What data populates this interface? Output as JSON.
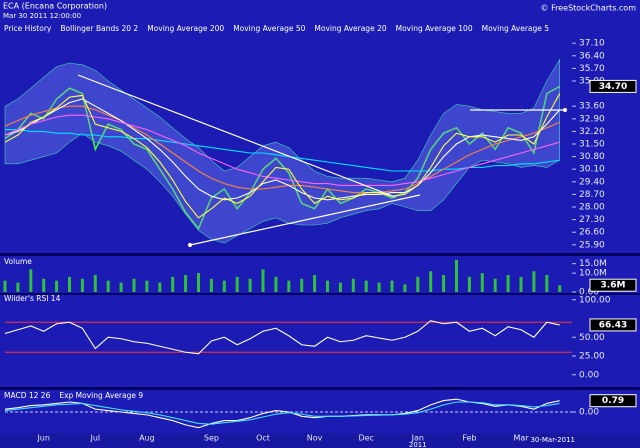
{
  "copyright": "© FreeStockCharts.com",
  "chart_data": [
    {
      "type": "line",
      "title": "ECA (Encana Corporation)",
      "subtitle": "Mar 30 2011 12:00:00",
      "categories": [
        null,
        null,
        null,
        "Jun",
        null,
        null,
        null,
        "Jul",
        null,
        null,
        null,
        "Aug",
        null,
        null,
        null,
        null,
        "Sep",
        null,
        null,
        null,
        "Oct",
        null,
        null,
        null,
        "Nov",
        null,
        null,
        null,
        "Dec",
        null,
        null,
        null,
        "Jan",
        null,
        null,
        null,
        "Feb",
        null,
        null,
        null,
        "Mar",
        null,
        null,
        null
      ],
      "x_sublabel": "2011",
      "x_end_label": "30-Mar-2011",
      "ylim": [
        25.5,
        37.5
      ],
      "yticks": [
        {
          "value": 25.9,
          "label": "25.90"
        },
        {
          "value": 26.6,
          "label": "26.60"
        },
        {
          "value": 27.3,
          "label": "27.30"
        },
        {
          "value": 28,
          "label": "28.00"
        },
        {
          "value": 28.7,
          "label": "28.70"
        },
        {
          "value": 29.4,
          "label": "29.40"
        },
        {
          "value": 30.1,
          "label": "30.10"
        },
        {
          "value": 30.8,
          "label": "30.80"
        },
        {
          "value": 31.5,
          "label": "31.50"
        },
        {
          "value": 32.2,
          "label": "32.20"
        },
        {
          "value": 32.9,
          "label": "32.90"
        },
        {
          "value": 33.6,
          "label": "33.60"
        },
        {
          "value": 35,
          "label": "35.00"
        },
        {
          "value": 35.7,
          "label": "35.70"
        },
        {
          "value": 36.4,
          "label": "36.40"
        },
        {
          "value": 37.1,
          "label": "37.10"
        }
      ],
      "last_value_label": "34.70",
      "series": [
        {
          "name": "Price History",
          "color": "#40f040",
          "values": [
            31.8,
            32.3,
            33.2,
            32.9,
            34.0,
            34.6,
            34.3,
            31.2,
            32.6,
            32.3,
            31.5,
            31.2,
            30.1,
            29.0,
            27.7,
            26.8,
            28.5,
            29.0,
            27.9,
            28.8,
            30.1,
            30.7,
            29.9,
            28.2,
            27.9,
            29.0,
            28.2,
            28.5,
            29.0,
            28.8,
            28.5,
            28.8,
            29.6,
            31.2,
            32.1,
            32.4,
            31.5,
            32.1,
            31.2,
            32.4,
            32.1,
            31.0,
            34.3,
            34.7
          ]
        },
        {
          "name": "Bollinger Bands 20 2",
          "color": "#40d0b0",
          "upper": [
            33.6,
            34.0,
            34.6,
            35.2,
            35.8,
            36.0,
            35.9,
            35.6,
            35.0,
            34.5,
            34.0,
            33.5,
            33.0,
            32.4,
            31.8,
            31.3,
            30.6,
            30.0,
            30.2,
            30.8,
            31.4,
            31.6,
            31.3,
            30.6,
            30.0,
            29.7,
            29.6,
            29.6,
            29.6,
            29.5,
            29.4,
            29.6,
            30.6,
            32.0,
            33.2,
            33.7,
            33.6,
            33.4,
            33.3,
            33.2,
            33.2,
            33.5,
            35.0,
            36.2
          ],
          "lower": [
            30.4,
            30.4,
            30.6,
            30.8,
            31.0,
            31.6,
            32.1,
            31.6,
            31.4,
            31.1,
            30.6,
            30.1,
            29.4,
            28.6,
            27.6,
            26.7,
            26.2,
            26.0,
            26.4,
            26.8,
            27.2,
            27.4,
            27.1,
            27.0,
            27.0,
            27.1,
            27.4,
            27.6,
            27.8,
            27.9,
            28.2,
            28.0,
            27.8,
            27.8,
            28.4,
            29.3,
            30.2,
            30.6,
            30.5,
            30.4,
            30.2,
            30.3,
            30.2,
            30.6
          ]
        },
        {
          "name": "Moving Average 200",
          "color": "#00e0ff",
          "values": [
            32.3,
            32.3,
            32.2,
            32.2,
            32.1,
            32.1,
            32.0,
            32.0,
            31.9,
            31.9,
            31.8,
            31.8,
            31.7,
            31.6,
            31.5,
            31.4,
            31.3,
            31.2,
            31.1,
            31.0,
            31.0,
            30.9,
            30.8,
            30.7,
            30.6,
            30.5,
            30.4,
            30.3,
            30.2,
            30.1,
            30.0,
            30.0,
            30.0,
            30.0,
            30.1,
            30.1,
            30.2,
            30.2,
            30.3,
            30.3,
            30.4,
            30.4,
            30.5,
            30.6
          ]
        },
        {
          "name": "Moving Average 50",
          "color": "#ff8040",
          "values": [
            32.5,
            32.8,
            33.1,
            33.3,
            33.5,
            33.6,
            33.6,
            33.4,
            33.1,
            32.8,
            32.4,
            32.0,
            31.5,
            31.0,
            30.5,
            30.0,
            29.6,
            29.3,
            29.1,
            29.0,
            29.0,
            29.1,
            29.2,
            29.2,
            29.1,
            29.0,
            28.9,
            28.8,
            28.8,
            28.8,
            28.9,
            29.0,
            29.3,
            29.7,
            30.1,
            30.5,
            30.9,
            31.2,
            31.5,
            31.7,
            31.9,
            32.1,
            32.4,
            32.7
          ]
        },
        {
          "name": "Moving Average 20",
          "color": "#ffffff",
          "values": [
            32.0,
            32.2,
            32.6,
            33.0,
            33.4,
            33.8,
            34.0,
            33.6,
            33.2,
            32.8,
            32.3,
            31.8,
            31.2,
            30.5,
            29.7,
            29.0,
            28.6,
            28.4,
            28.5,
            28.8,
            29.3,
            29.5,
            29.2,
            28.8,
            28.5,
            28.4,
            28.5,
            28.6,
            28.7,
            28.7,
            28.8,
            28.8,
            29.2,
            29.9,
            30.8,
            31.5,
            31.9,
            32.0,
            31.9,
            31.8,
            31.7,
            31.9,
            32.6,
            33.4
          ]
        },
        {
          "name": "Moving Average 100",
          "color": "#ff60ff",
          "values": [
            32.0,
            32.3,
            32.6,
            32.8,
            33.0,
            33.1,
            33.1,
            33.0,
            32.9,
            32.7,
            32.5,
            32.3,
            32.0,
            31.7,
            31.4,
            31.0,
            30.7,
            30.4,
            30.1,
            29.9,
            29.7,
            29.6,
            29.5,
            29.4,
            29.3,
            29.3,
            29.2,
            29.2,
            29.2,
            29.2,
            29.2,
            29.3,
            29.4,
            29.6,
            29.8,
            30.0,
            30.2,
            30.4,
            30.6,
            30.8,
            31.0,
            31.2,
            31.4,
            31.6
          ]
        },
        {
          "name": "Moving Average 5",
          "color": "#ffff40",
          "values": [
            31.6,
            32.0,
            32.7,
            33.0,
            33.5,
            34.1,
            34.2,
            32.6,
            32.4,
            32.2,
            31.8,
            31.3,
            30.5,
            29.5,
            28.3,
            27.4,
            27.9,
            28.5,
            28.2,
            28.6,
            29.4,
            30.2,
            30.1,
            29.0,
            28.2,
            28.6,
            28.4,
            28.5,
            28.8,
            28.8,
            28.6,
            28.7,
            29.2,
            30.2,
            31.4,
            32.1,
            31.9,
            31.9,
            31.6,
            32.0,
            32.0,
            31.5,
            33.0,
            34.3
          ]
        }
      ]
    },
    {
      "type": "bar",
      "ylim": [
        0,
        18000000
      ],
      "yticks": [
        {
          "value": 0,
          "label": "0.00"
        },
        {
          "value": 10000000,
          "label": "10.0M"
        },
        {
          "value": 15000000,
          "label": "15.0M"
        }
      ],
      "last_value_label": "3.6M",
      "series": [
        {
          "name": "Volume",
          "color": "#30c040",
          "legend_color": "#ff3070",
          "values": [
            6000000,
            5000000,
            12000000,
            7000000,
            6000000,
            8000000,
            7000000,
            9000000,
            6000000,
            5000000,
            7000000,
            6000000,
            5000000,
            8000000,
            9000000,
            10000000,
            7000000,
            6000000,
            8000000,
            7000000,
            12000000,
            8000000,
            6000000,
            7000000,
            9000000,
            6000000,
            5000000,
            7000000,
            6000000,
            5000000,
            6000000,
            4000000,
            8000000,
            11000000,
            9000000,
            17000000,
            8000000,
            10000000,
            7000000,
            9000000,
            8000000,
            11000000,
            9000000,
            3600000
          ]
        }
      ]
    },
    {
      "type": "line",
      "ylim": [
        -15,
        105
      ],
      "yticks": [
        {
          "value": 0,
          "label": "0.00"
        },
        {
          "value": 25,
          "label": "25.00"
        },
        {
          "value": 50,
          "label": "50.00"
        },
        {
          "value": 100,
          "label": "100.00"
        }
      ],
      "reference_lines": [
        70,
        30
      ],
      "reference_color": "#ff3030",
      "last_value_label": "66.43",
      "series": [
        {
          "name": "Wilder's RSI 14",
          "color": "#ffffff",
          "values": [
            55,
            60,
            65,
            58,
            68,
            70,
            62,
            35,
            50,
            48,
            44,
            42,
            38,
            34,
            30,
            28,
            45,
            50,
            40,
            48,
            58,
            62,
            52,
            40,
            38,
            50,
            44,
            46,
            52,
            49,
            46,
            50,
            58,
            72,
            68,
            70,
            58,
            62,
            52,
            64,
            60,
            50,
            70,
            66.43
          ]
        }
      ]
    },
    {
      "type": "line",
      "ylim": [
        -1.4,
        1.4
      ],
      "yticks": [
        {
          "value": 0,
          "label": "0.00"
        }
      ],
      "last_value_label": "0.79",
      "series": [
        {
          "name": "MACD 12 26",
          "color": "#ffffff",
          "values": [
            0.2,
            0.3,
            0.45,
            0.5,
            0.6,
            0.7,
            0.6,
            0.2,
            0.1,
            0.0,
            -0.1,
            -0.2,
            -0.4,
            -0.6,
            -0.9,
            -1.1,
            -0.8,
            -0.6,
            -0.6,
            -0.4,
            -0.1,
            0.1,
            0.0,
            -0.3,
            -0.4,
            -0.3,
            -0.3,
            -0.25,
            -0.2,
            -0.2,
            -0.2,
            -0.1,
            0.1,
            0.5,
            0.8,
            0.9,
            0.7,
            0.6,
            0.4,
            0.5,
            0.4,
            0.2,
            0.6,
            0.79
          ]
        },
        {
          "name": "Exp Moving Average 9",
          "color": "#40e0ff",
          "values": [
            0.1,
            0.2,
            0.3,
            0.4,
            0.5,
            0.55,
            0.6,
            0.45,
            0.3,
            0.15,
            0.05,
            -0.05,
            -0.2,
            -0.4,
            -0.6,
            -0.8,
            -0.85,
            -0.75,
            -0.65,
            -0.55,
            -0.35,
            -0.15,
            -0.05,
            -0.15,
            -0.3,
            -0.3,
            -0.3,
            -0.28,
            -0.24,
            -0.22,
            -0.2,
            -0.15,
            -0.05,
            0.2,
            0.5,
            0.7,
            0.7,
            0.65,
            0.5,
            0.5,
            0.45,
            0.35,
            0.45,
            0.6
          ]
        }
      ]
    }
  ]
}
